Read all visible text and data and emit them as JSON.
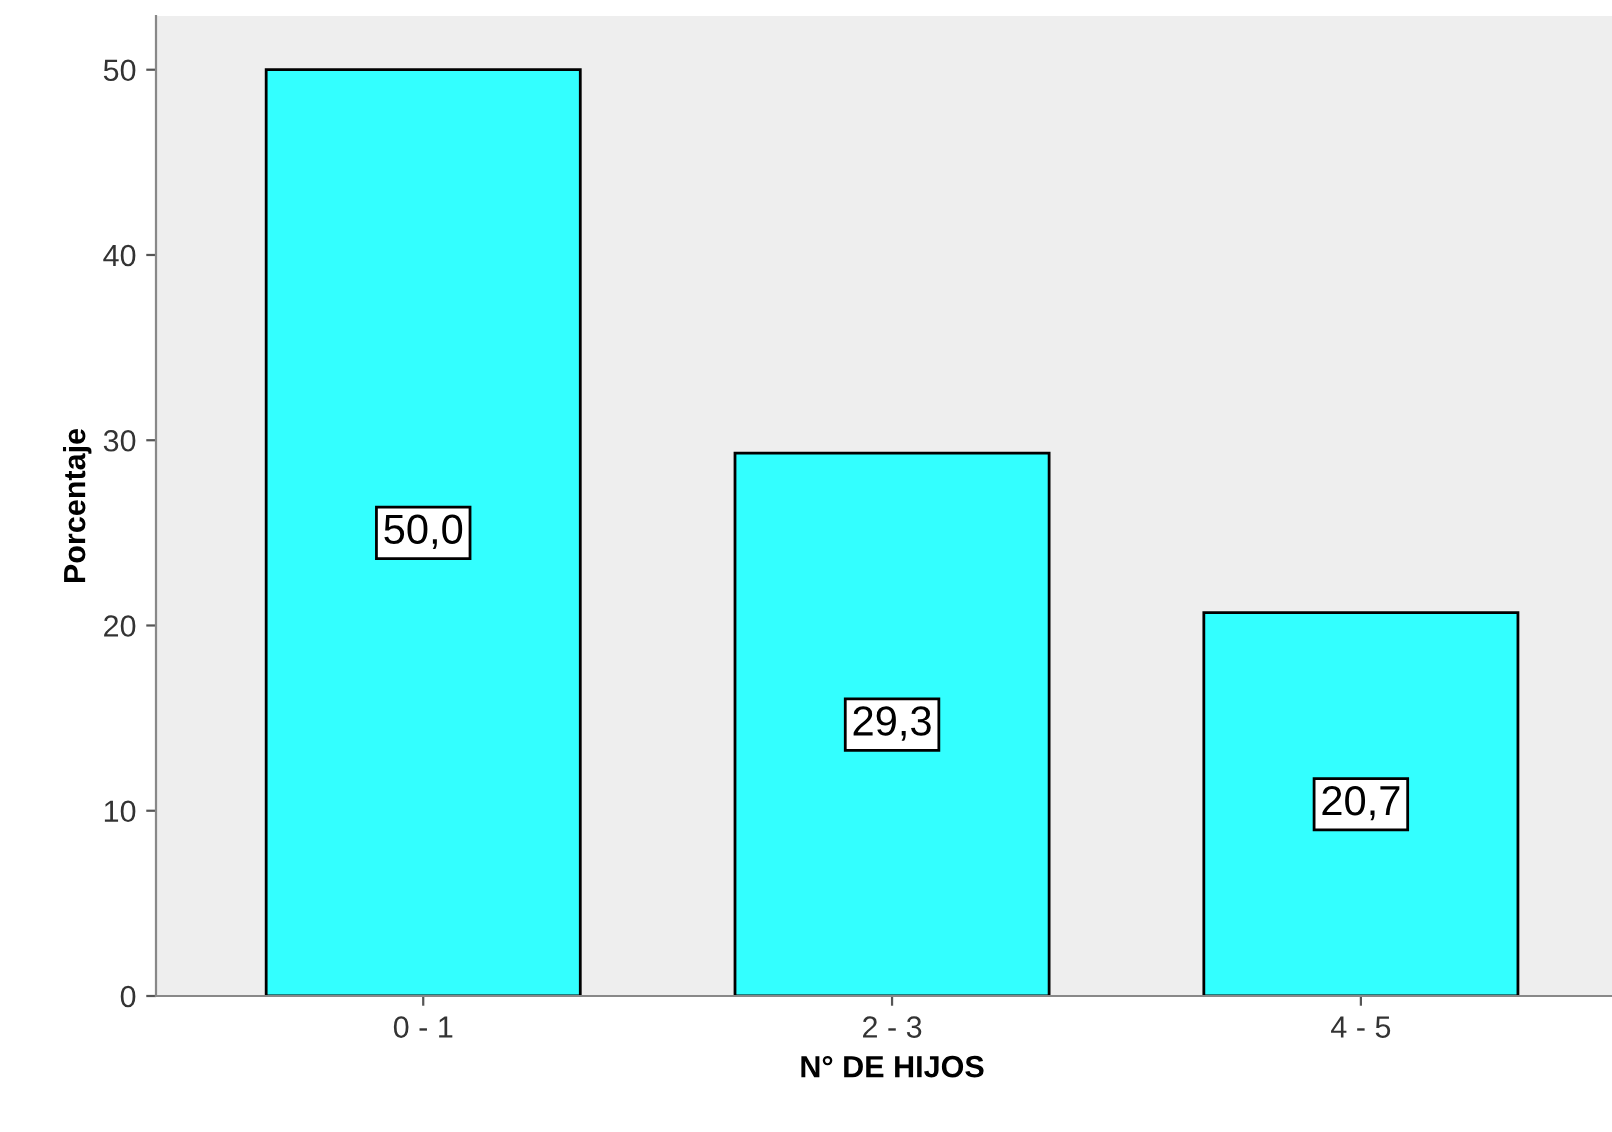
{
  "chart_data": {
    "type": "bar",
    "xlabel": "N° DE HIJOS",
    "ylabel": "Porcentaje",
    "categories": [
      "0 - 1",
      "2 - 3",
      "4 - 5"
    ],
    "values": [
      50.0,
      29.3,
      20.7
    ],
    "value_labels": [
      "50,0",
      "29,3",
      "20,7"
    ],
    "color": "#33ffff",
    "ylim": [
      0,
      52.9
    ],
    "yticks": [
      0,
      10,
      20,
      30,
      40,
      50
    ],
    "grid": false
  }
}
